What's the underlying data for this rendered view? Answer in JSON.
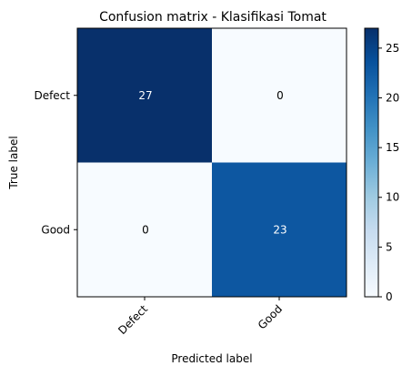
{
  "chart_data": {
    "type": "heatmap",
    "title": "Confusion matrix - Klasifikasi Tomat",
    "xlabel": "Predicted label",
    "ylabel": "True label",
    "x_categories": [
      "Defect",
      "Good"
    ],
    "y_categories": [
      "Defect",
      "Good"
    ],
    "matrix": [
      [
        27,
        0
      ],
      [
        0,
        23
      ]
    ],
    "colormap": "Blues",
    "color_range": [
      0,
      27
    ],
    "colorbar_ticks": [
      0,
      5,
      10,
      15,
      20,
      25
    ],
    "x_tick_rotation_deg": 45,
    "grid": false,
    "legend": "colorbar-right"
  }
}
